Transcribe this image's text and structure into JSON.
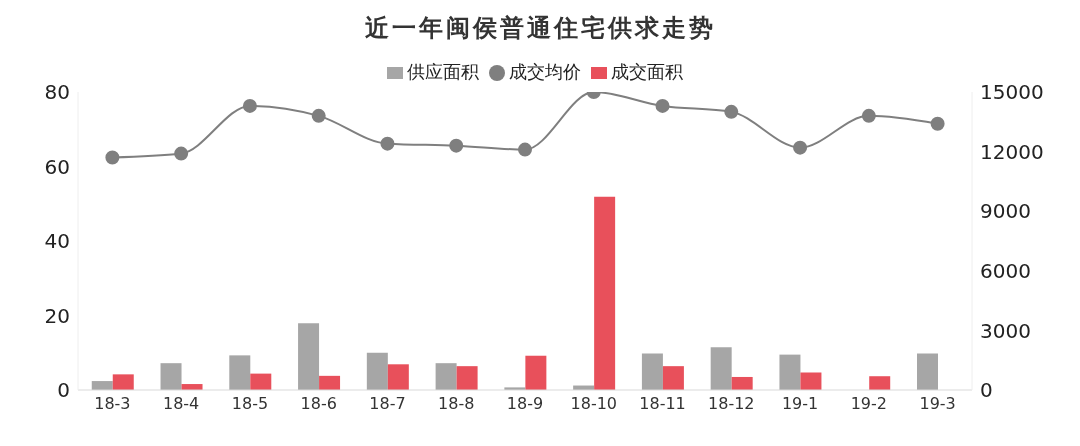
{
  "chart_data": {
    "type": "bar",
    "title": "近一年闽侯普通住宅供求走势",
    "categories": [
      "18-3",
      "18-4",
      "18-5",
      "18-6",
      "18-7",
      "18-8",
      "18-9",
      "18-10",
      "18-11",
      "18-12",
      "19-1",
      "19-2",
      "19-3"
    ],
    "series": [
      {
        "name": "供应面积",
        "color": "#a6a6a6",
        "values": [
          2.4,
          7.2,
          9.3,
          17.9,
          10.0,
          7.2,
          0.7,
          1.2,
          9.8,
          11.5,
          9.5,
          0,
          9.8
        ]
      },
      {
        "name": "成交面积",
        "color": "#e8505b",
        "values": [
          4.2,
          1.6,
          4.4,
          3.8,
          6.9,
          6.4,
          9.2,
          51.9,
          6.4,
          3.5,
          4.7,
          3.7,
          null
        ]
      },
      {
        "name": "成交均价",
        "type": "line",
        "axis": "y2",
        "color": "#7f7f7f",
        "values": [
          11700,
          11900,
          14300,
          13800,
          12400,
          12300,
          12100,
          15000,
          14300,
          14000,
          12200,
          13800,
          13400
        ]
      }
    ],
    "ylim": [
      0,
      80
    ],
    "yticks": [
      0,
      20,
      40,
      60,
      80
    ],
    "y2lim": [
      0,
      15000
    ],
    "y2ticks": [
      0,
      3000,
      6000,
      9000,
      12000,
      15000
    ],
    "grid": false,
    "legend": "top",
    "marker": "circle",
    "line_style": "solid"
  }
}
